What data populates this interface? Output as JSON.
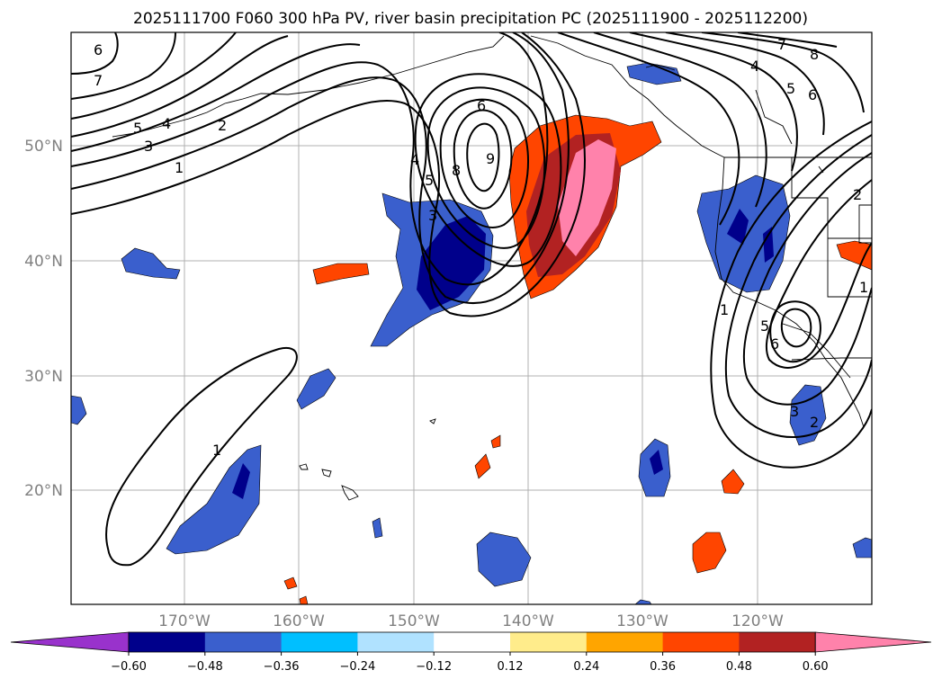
{
  "title": "2025111700 F060 300 hPa PV, river basin precipitation PC (2025111900 - 2025112200)",
  "lat_labels": [
    "50°N",
    "40°N",
    "30°N",
    "20°N"
  ],
  "lon_labels": [
    "170°W",
    "160°W",
    "150°W",
    "140°W",
    "130°W",
    "120°W"
  ],
  "colorbar": {
    "ticks": [
      "−0.60",
      "−0.48",
      "−0.36",
      "−0.24",
      "−0.12",
      "0.12",
      "0.24",
      "0.36",
      "0.48",
      "0.60"
    ],
    "colors": [
      "#9932cc",
      "#00008b",
      "#3a5fcd",
      "#00bfff",
      "#b0e2ff",
      "#ffffff",
      "#ffec8b",
      "#ffa500",
      "#ff4500",
      "#b22222",
      "#ff82ab"
    ]
  },
  "contour_labels": {
    "c1": "6",
    "c2": "7",
    "c3": "5",
    "c4": "4",
    "c5": "3",
    "c6": "2",
    "c7": "1",
    "c8": "6",
    "c9": "9",
    "c10": "8",
    "c11": "4",
    "c12": "5",
    "c13": "3",
    "c14": "7",
    "c15": "8",
    "c16": "4",
    "c17": "5",
    "c18": "6",
    "c19": "1",
    "c20": "5",
    "c21": "6",
    "c22": "2",
    "c23": "1",
    "c24": "3",
    "c25": "2",
    "c26": "1"
  }
}
